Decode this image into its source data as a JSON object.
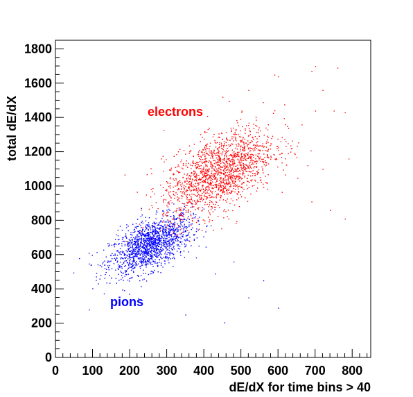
{
  "chart_data": {
    "type": "scatter",
    "title": "",
    "xlabel": "dE/dX for time bins > 40",
    "ylabel": "total dE/dX",
    "xlim": [
      0,
      850
    ],
    "ylim": [
      0,
      1850
    ],
    "xticks": [
      0,
      100,
      200,
      300,
      400,
      500,
      600,
      700,
      800
    ],
    "yticks": [
      0,
      200,
      400,
      600,
      800,
      1000,
      1200,
      1400,
      1600,
      1800
    ],
    "grid": false,
    "legend": "none",
    "series": [
      {
        "name": "electrons",
        "color": "#ff0000",
        "cluster": {
          "center": [
            440,
            1080
          ],
          "spread": [
            75,
            130
          ],
          "count": 1700
        },
        "outliers": [
          [
            590,
            1650
          ],
          [
            600,
            1640
          ],
          [
            700,
            1700
          ],
          [
            760,
            1690
          ],
          [
            690,
            1670
          ],
          [
            450,
            1520
          ],
          [
            520,
            1560
          ],
          [
            720,
            1560
          ],
          [
            700,
            1440
          ],
          [
            750,
            1440
          ],
          [
            780,
            1430
          ],
          [
            790,
            1160
          ],
          [
            720,
            1100
          ],
          [
            740,
            860
          ],
          [
            690,
            910
          ],
          [
            780,
            810
          ]
        ]
      },
      {
        "name": "pions",
        "color": "#0000ff",
        "cluster": {
          "center": [
            255,
            660
          ],
          "spread": [
            55,
            85
          ],
          "count": 1500
        },
        "outliers": [
          [
            455,
            205
          ],
          [
            600,
            290
          ],
          [
            430,
            490
          ],
          [
            520,
            350
          ],
          [
            560,
            450
          ],
          [
            480,
            560
          ],
          [
            350,
            250
          ],
          [
            90,
            280
          ]
        ]
      }
    ],
    "annotations": [
      {
        "text": "electrons",
        "x": 250,
        "y": 1390,
        "color": "#ff0000"
      },
      {
        "text": "pions",
        "x": 148,
        "y": 300,
        "color": "#0000ff"
      }
    ]
  }
}
